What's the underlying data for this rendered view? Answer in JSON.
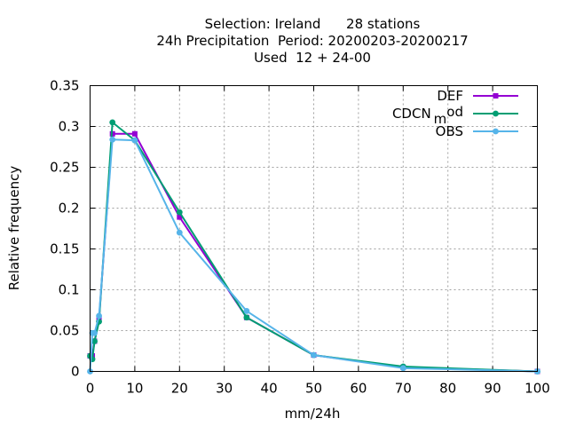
{
  "chart_data": {
    "type": "line",
    "title_lines": [
      "Selection: Ireland      28 stations",
      "24h Precipitation  Period: 20200203-20200217",
      "Used  12 + 24-00"
    ],
    "xlabel": "mm/24h",
    "ylabel": "Relative frequency",
    "xlim": [
      0,
      100
    ],
    "ylim": [
      0,
      0.35
    ],
    "xticks": [
      0,
      10,
      20,
      30,
      40,
      50,
      60,
      70,
      80,
      90,
      100
    ],
    "yticks": [
      0,
      0.05,
      0.1,
      0.15,
      0.2,
      0.25,
      0.3,
      0.35
    ],
    "xtick_labels": [
      "0",
      "10",
      "20",
      "30",
      "40",
      "50",
      "60",
      "70",
      "80",
      "90",
      "100"
    ],
    "ytick_labels": [
      "0",
      "0.05",
      "0.1",
      "0.15",
      "0.2",
      "0.25",
      "0.3",
      "0.35"
    ],
    "grid": true,
    "legend_position": "top-right",
    "series": [
      {
        "name": "DEF",
        "color": "#9400d3",
        "x": [
          0,
          0.5,
          1,
          2,
          5,
          10,
          20,
          35,
          50,
          70,
          100
        ],
        "y": [
          0.019,
          0.019,
          0.037,
          0.064,
          0.291,
          0.291,
          0.189,
          0.066,
          0.02,
          0.005,
          0.0
        ]
      },
      {
        "name": "CDCN_mod",
        "color": "#009e73",
        "x": [
          0,
          0.5,
          1,
          2,
          5,
          10,
          20,
          35,
          50,
          70,
          100
        ],
        "y": [
          0.019,
          0.015,
          0.037,
          0.061,
          0.305,
          0.283,
          0.195,
          0.066,
          0.02,
          0.006,
          0.0
        ]
      },
      {
        "name": "OBS",
        "color": "#56b4e9",
        "x": [
          0,
          0.5,
          1,
          2,
          5,
          10,
          20,
          35,
          50,
          70,
          100
        ],
        "y": [
          0.0,
          0.047,
          0.047,
          0.068,
          0.284,
          0.283,
          0.17,
          0.074,
          0.02,
          0.004,
          0.0
        ]
      }
    ],
    "legend_entries": [
      {
        "label_main": "DEF",
        "label_sub": "",
        "label_tail": "",
        "color": "#9400d3"
      },
      {
        "label_main": "CDCN",
        "label_sub": "m",
        "label_tail": "od",
        "color": "#009e73"
      },
      {
        "label_main": "OBS",
        "label_sub": "",
        "label_tail": "",
        "color": "#56b4e9"
      }
    ]
  }
}
